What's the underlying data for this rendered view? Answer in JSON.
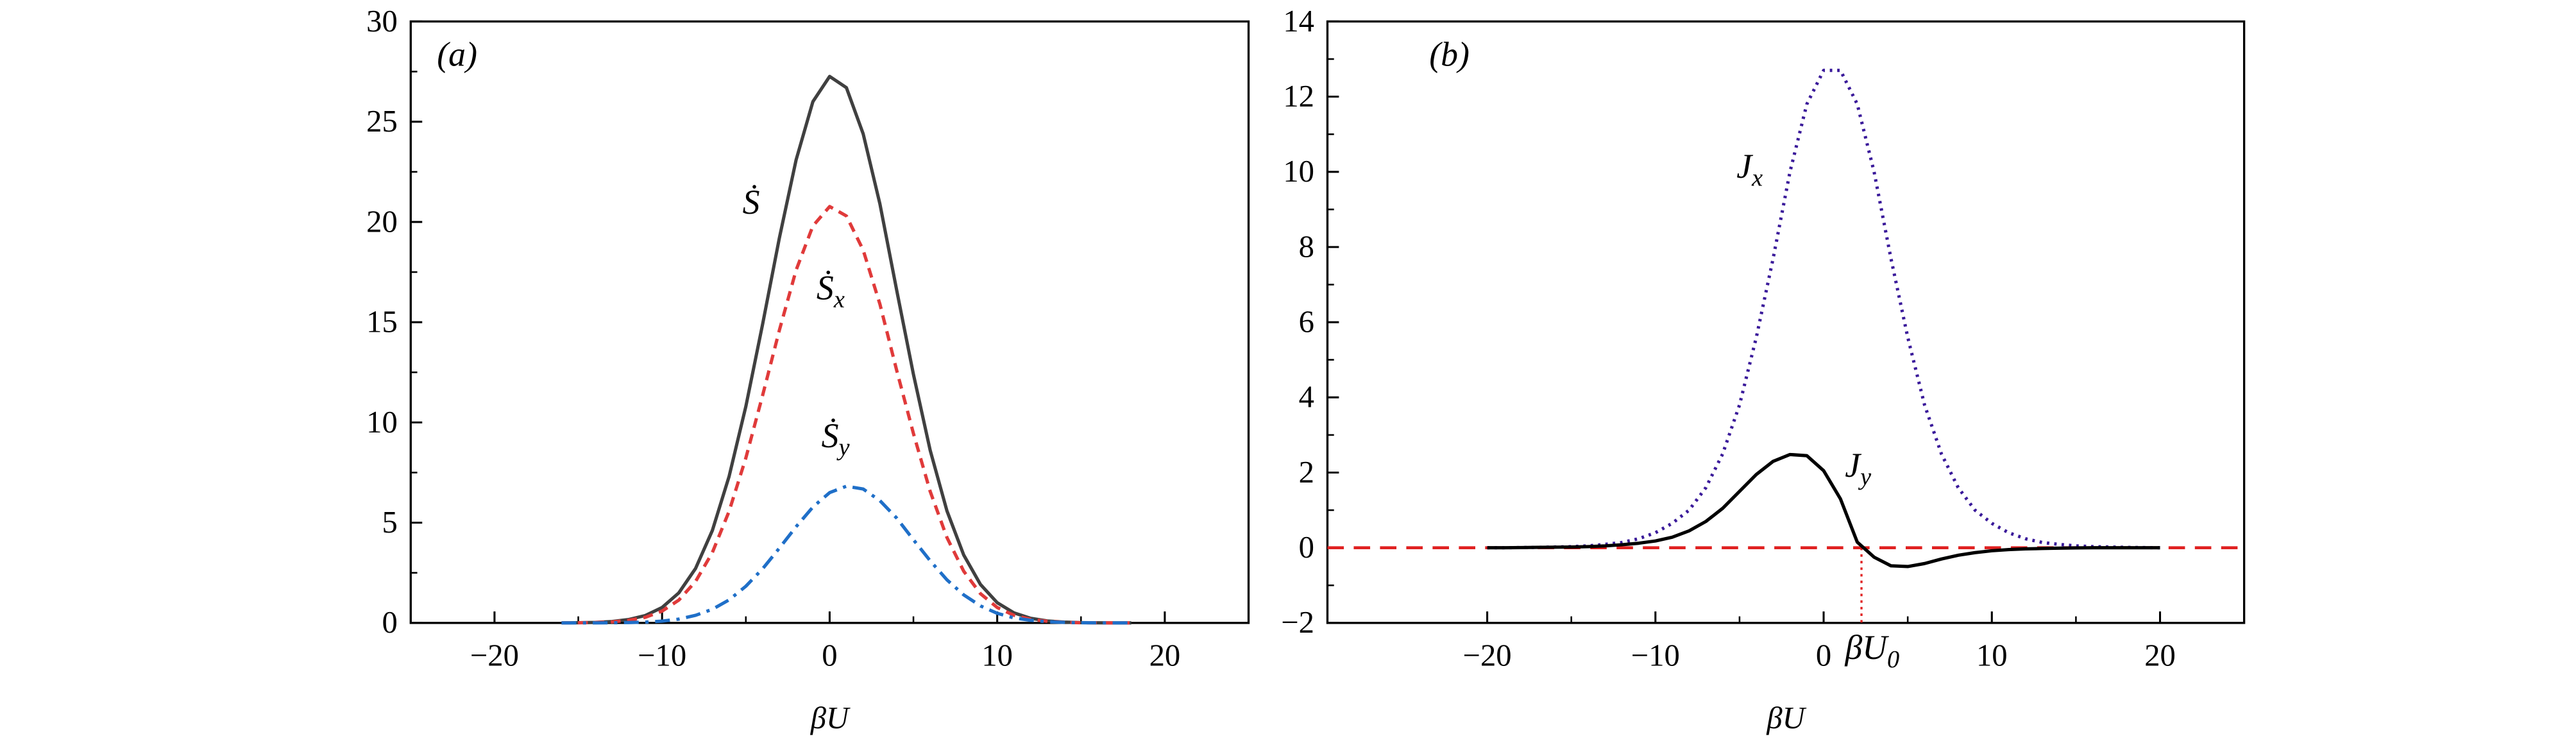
{
  "chart_data": [
    {
      "type": "line",
      "annotations": [
        {
          "text": "(a)"
        },
        {
          "text": "Ṡ"
        },
        {
          "text": "Ṡ",
          "sub": "x"
        },
        {
          "text": "Ṡ",
          "sub": "y"
        }
      ],
      "xlabel": "βU",
      "x": [
        -16,
        -15,
        -14,
        -13,
        -12,
        -11,
        -10,
        -9,
        -8,
        -7,
        -6,
        -5,
        -4,
        -3,
        -2,
        -1,
        0,
        1,
        2,
        3,
        4,
        5,
        6,
        7,
        8,
        9,
        10,
        11,
        12,
        13,
        14,
        15,
        16,
        17,
        18
      ],
      "series": [
        {
          "name": "Ṡ",
          "color": "#404040",
          "style": "solid",
          "values": [
            0.003,
            0.01,
            0.027,
            0.07,
            0.17,
            0.37,
            0.77,
            1.5,
            2.72,
            4.61,
            7.31,
            10.8,
            14.9,
            19.2,
            23.1,
            26.0,
            27.26,
            26.7,
            24.4,
            20.9,
            16.6,
            12.4,
            8.61,
            5.59,
            3.39,
            1.92,
            1.01,
            0.5,
            0.23,
            0.1,
            0.04,
            0.015,
            0.005,
            0.002,
            0.0
          ]
        },
        {
          "name": "Ṡx",
          "color": "#e03a3a",
          "style": "dashed",
          "values": [
            0.002,
            0.008,
            0.021,
            0.05,
            0.13,
            0.28,
            0.59,
            1.14,
            2.07,
            3.51,
            5.57,
            8.23,
            11.35,
            14.6,
            17.6,
            19.8,
            20.77,
            20.3,
            18.6,
            15.9,
            12.6,
            9.45,
            6.56,
            4.26,
            2.58,
            1.46,
            0.77,
            0.38,
            0.18,
            0.08,
            0.03,
            0.01,
            0.004,
            0.002,
            0.0
          ]
        },
        {
          "name": "Ṡy",
          "color": "#1f6fc8",
          "style": "dashdot",
          "values": [
            0.001,
            0.001,
            0.003,
            0.007,
            0.02,
            0.04,
            0.09,
            0.19,
            0.38,
            0.68,
            1.15,
            1.83,
            2.7,
            3.73,
            4.8,
            5.78,
            6.5,
            6.82,
            6.68,
            6.1,
            5.23,
            4.15,
            3.1,
            2.15,
            1.4,
            0.85,
            0.48,
            0.25,
            0.13,
            0.06,
            0.025,
            0.01,
            0.004,
            0.001,
            0.0
          ]
        }
      ],
      "xlim": [
        -25,
        25
      ],
      "ylim": [
        0,
        30
      ],
      "xticks": [
        {
          "value": -20,
          "label": "−20"
        },
        {
          "value": -10,
          "label": "−10"
        },
        0,
        10,
        20
      ],
      "yticks": [
        0,
        5,
        10,
        15,
        20,
        25,
        30
      ]
    },
    {
      "type": "line",
      "annotations": [
        {
          "text": "(b)"
        },
        {
          "text": "J",
          "sub": "x"
        },
        {
          "text": "J",
          "sub": "y"
        }
      ],
      "xlabel": "βU",
      "x": [
        -20,
        -19,
        -18,
        -17,
        -16,
        -15,
        -14,
        -13,
        -12,
        -11,
        -10,
        -9,
        -8,
        -7,
        -6,
        -5,
        -4,
        -3,
        -2,
        -1,
        0,
        1,
        2,
        3,
        4,
        5,
        6,
        7,
        8,
        9,
        10,
        11,
        12,
        13,
        14,
        15,
        16,
        17,
        18,
        19,
        20
      ],
      "series": [
        {
          "name": "Jx",
          "color": "#3a1a9a",
          "style": "dotted",
          "values": [
            0,
            0,
            0.005,
            0.01,
            0.02,
            0.03,
            0.05,
            0.09,
            0.14,
            0.24,
            0.4,
            0.65,
            1.0,
            1.6,
            2.5,
            3.8,
            5.6,
            7.7,
            10.0,
            11.8,
            12.7,
            12.7,
            11.8,
            10.0,
            7.7,
            5.6,
            3.8,
            2.5,
            1.6,
            1.0,
            0.65,
            0.4,
            0.24,
            0.14,
            0.09,
            0.05,
            0.03,
            0.02,
            0.01,
            0.005,
            0
          ]
        },
        {
          "name": "Jy",
          "color": "#000000",
          "style": "solid",
          "values": [
            0,
            0,
            0.005,
            0.01,
            0.015,
            0.02,
            0.03,
            0.05,
            0.08,
            0.12,
            0.18,
            0.28,
            0.45,
            0.7,
            1.05,
            1.5,
            1.95,
            2.3,
            2.48,
            2.45,
            2.05,
            1.3,
            0.15,
            -0.25,
            -0.48,
            -0.5,
            -0.42,
            -0.3,
            -0.2,
            -0.13,
            -0.08,
            -0.05,
            -0.03,
            -0.02,
            -0.01,
            -0.005,
            0,
            0,
            0,
            0,
            0
          ]
        }
      ],
      "hline": {
        "value": 0,
        "color": "#e02020"
      },
      "vline": {
        "value": 2.25,
        "label": "βU",
        "sub": "0",
        "color": "#e02020"
      },
      "xlim": [
        -29.5,
        25
      ],
      "ylim": [
        -2,
        14
      ],
      "xticks": [
        {
          "value": -20,
          "label": "−20"
        },
        {
          "value": -10,
          "label": "−10"
        },
        0,
        10,
        20
      ],
      "yticks": [
        {
          "value": -2,
          "label": "−2"
        },
        0,
        2,
        4,
        6,
        8,
        10,
        12,
        14
      ]
    }
  ]
}
